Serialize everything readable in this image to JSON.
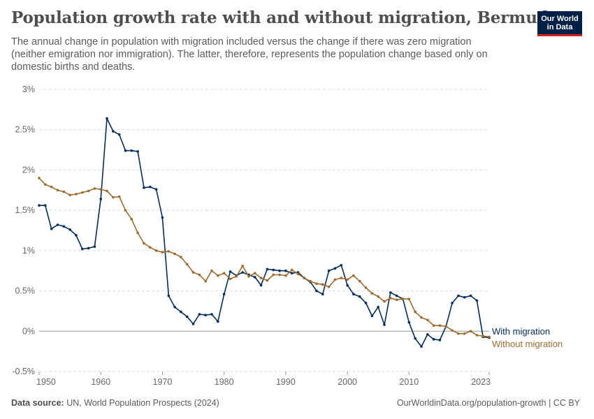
{
  "header": {
    "title": "Population growth rate with and without migration, Bermuda",
    "subtitle": "The annual change in population with migration included versus the change if there was zero migration (neither emigration nor immigration). The latter, therefore, represents the population change based only on domestic births and deaths."
  },
  "logo": {
    "line1": "Our World",
    "line2": "in Data"
  },
  "footer": {
    "source_label": "Data source:",
    "source_text": "UN, World Population Prospects (2024)",
    "right_text": "OurWorldinData.org/population-growth | CC BY"
  },
  "colors": {
    "with_migration": "#002c5f",
    "without_migration": "#9c6c2e",
    "grid": "#dddddd",
    "zero_line": "#999999"
  },
  "chart_data": {
    "type": "line",
    "title": "Population growth rate with and without migration, Bermuda",
    "ylim": [
      -0.5,
      3
    ],
    "xlim": [
      1950,
      2023
    ],
    "y_ticks": [
      -0.5,
      0,
      0.5,
      1,
      1.5,
      2,
      2.5,
      3
    ],
    "y_tick_labels": [
      "-0.5%",
      "0%",
      "0.5%",
      "1%",
      "1.5%",
      "2%",
      "2.5%",
      "3%"
    ],
    "x_ticks": [
      1950,
      1960,
      1970,
      1980,
      1990,
      2000,
      2010,
      2023
    ],
    "x_tick_labels": [
      "1950",
      "1960",
      "1970",
      "1980",
      "1990",
      "2000",
      "2010",
      "2023"
    ],
    "grid": true,
    "legend": "inline-right",
    "x": [
      1950,
      1951,
      1952,
      1953,
      1954,
      1955,
      1956,
      1957,
      1958,
      1959,
      1960,
      1961,
      1962,
      1963,
      1964,
      1965,
      1966,
      1967,
      1968,
      1969,
      1970,
      1971,
      1972,
      1973,
      1974,
      1975,
      1976,
      1977,
      1978,
      1979,
      1980,
      1981,
      1982,
      1983,
      1984,
      1985,
      1986,
      1987,
      1988,
      1989,
      1990,
      1991,
      1992,
      1993,
      1994,
      1995,
      1996,
      1997,
      1998,
      1999,
      2000,
      2001,
      2002,
      2003,
      2004,
      2005,
      2006,
      2007,
      2008,
      2009,
      2010,
      2011,
      2012,
      2013,
      2014,
      2015,
      2016,
      2017,
      2018,
      2019,
      2020,
      2021,
      2022,
      2023
    ],
    "series": [
      {
        "name": "With migration",
        "values": [
          1.56,
          1.56,
          1.27,
          1.32,
          1.3,
          1.26,
          1.19,
          1.02,
          1.03,
          1.05,
          1.64,
          2.64,
          2.48,
          2.44,
          2.24,
          2.24,
          2.23,
          1.78,
          1.79,
          1.76,
          1.41,
          0.44,
          0.3,
          0.24,
          0.18,
          0.09,
          0.21,
          0.2,
          0.21,
          0.12,
          0.46,
          0.74,
          0.69,
          0.73,
          0.7,
          0.67,
          0.57,
          0.77,
          0.76,
          0.75,
          0.75,
          0.72,
          0.73,
          0.66,
          0.61,
          0.5,
          0.46,
          0.75,
          0.78,
          0.82,
          0.57,
          0.46,
          0.43,
          0.35,
          0.19,
          0.3,
          0.08,
          0.48,
          0.44,
          0.4,
          0.11,
          -0.09,
          -0.19,
          -0.04,
          -0.1,
          -0.11,
          0.06,
          0.35,
          0.44,
          0.42,
          0.44,
          0.38,
          -0.07,
          -0.08
        ]
      },
      {
        "name": "Without migration",
        "values": [
          1.9,
          1.82,
          1.79,
          1.75,
          1.73,
          1.69,
          1.7,
          1.72,
          1.74,
          1.77,
          1.76,
          1.74,
          1.66,
          1.67,
          1.5,
          1.39,
          1.22,
          1.09,
          1.04,
          1.0,
          0.98,
          0.99,
          0.96,
          0.92,
          0.83,
          0.73,
          0.7,
          0.62,
          0.75,
          0.69,
          0.72,
          0.65,
          0.68,
          0.81,
          0.68,
          0.72,
          0.66,
          0.63,
          0.7,
          0.7,
          0.69,
          0.76,
          0.71,
          0.66,
          0.62,
          0.59,
          0.58,
          0.55,
          0.64,
          0.66,
          0.64,
          0.69,
          0.62,
          0.54,
          0.47,
          0.43,
          0.37,
          0.41,
          0.39,
          0.4,
          0.4,
          0.24,
          0.17,
          0.14,
          0.07,
          0.07,
          0.06,
          0.01,
          -0.03,
          -0.03,
          0.0,
          -0.05,
          -0.06,
          -0.07
        ]
      }
    ]
  }
}
